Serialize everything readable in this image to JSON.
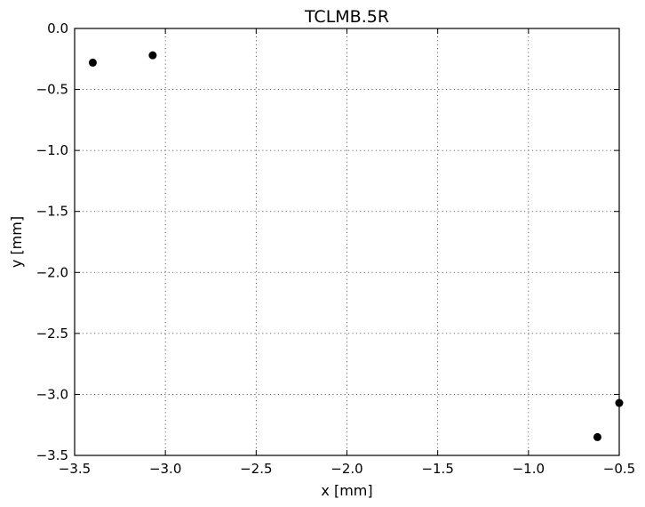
{
  "chart_data": {
    "type": "scatter",
    "title": "TCLMB.5R",
    "xlabel": "x [mm]",
    "ylabel": "y [mm]",
    "xlim": [
      -3.5,
      -0.5
    ],
    "ylim": [
      -3.5,
      0.0
    ],
    "grid": true,
    "x_ticks": [
      -3.5,
      -3.0,
      -2.5,
      -2.0,
      -1.5,
      -1.0,
      -0.5
    ],
    "x_tick_labels": [
      "−3.5",
      "−3.0",
      "−2.5",
      "−2.0",
      "−1.5",
      "−1.0",
      "−0.5"
    ],
    "y_ticks": [
      0.0,
      -0.5,
      -1.0,
      -1.5,
      -2.0,
      -2.5,
      -3.0,
      -3.5
    ],
    "y_tick_labels": [
      "0.0",
      "−0.5",
      "−1.0",
      "−1.5",
      "−2.0",
      "−2.5",
      "−3.0",
      "−3.5"
    ],
    "marker_color": "#000000",
    "series": [
      {
        "name": "points",
        "x": [
          -3.4,
          -3.07,
          -0.62,
          -0.5
        ],
        "y": [
          -0.28,
          -0.22,
          -3.35,
          -3.07
        ]
      }
    ]
  }
}
